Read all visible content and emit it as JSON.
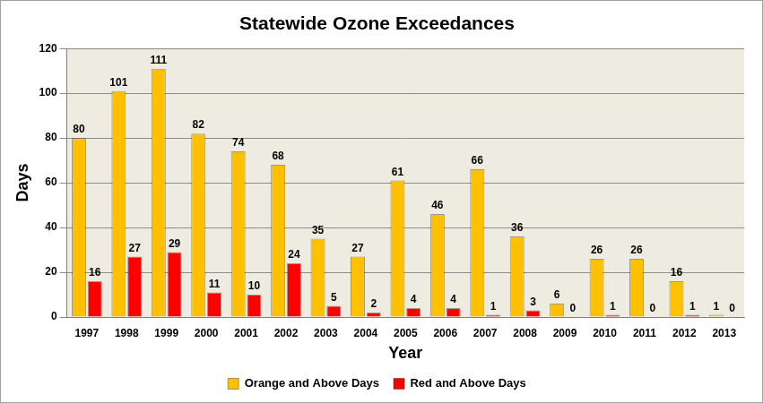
{
  "chart_data": {
    "type": "bar",
    "title": "Statewide Ozone Exceedances",
    "x_label": "Year",
    "y_label": "Days",
    "categories": [
      "1997",
      "1998",
      "1999",
      "2000",
      "2001",
      "2002",
      "2003",
      "2004",
      "2005",
      "2006",
      "2007",
      "2008",
      "2009",
      "2010",
      "2011",
      "2012",
      "2013"
    ],
    "series": [
      {
        "name": "Orange and Above Days",
        "color": "#ffc000",
        "values": [
          80,
          101,
          111,
          82,
          74,
          68,
          35,
          27,
          61,
          46,
          66,
          36,
          6,
          26,
          26,
          16,
          1
        ]
      },
      {
        "name": "Red and Above Days",
        "color": "#ff0000",
        "values": [
          16,
          27,
          29,
          11,
          10,
          24,
          5,
          2,
          4,
          4,
          1,
          3,
          0,
          1,
          0,
          1,
          0
        ]
      }
    ],
    "ylim": [
      0,
      120
    ],
    "yticks": [
      0,
      20,
      40,
      60,
      80,
      100,
      120
    ],
    "grid": true,
    "legend": "bottom",
    "data_labels": true
  }
}
